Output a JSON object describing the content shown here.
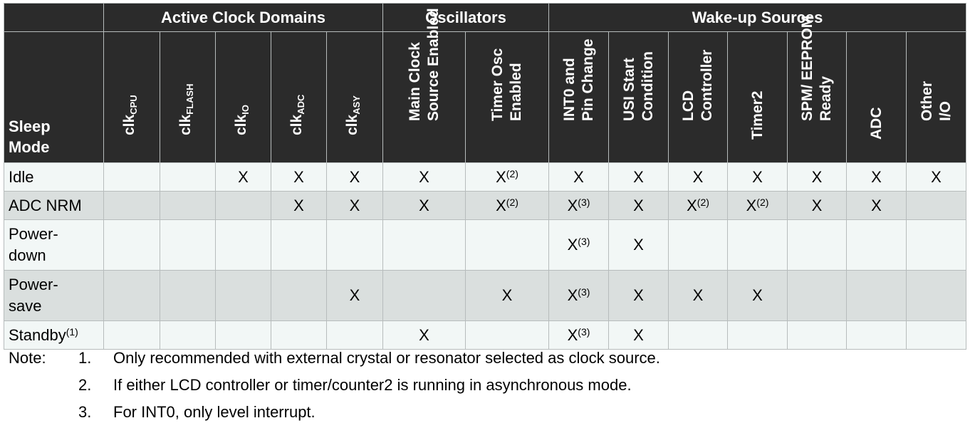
{
  "groups": {
    "active_clock_domains": "Active Clock Domains",
    "oscillators": "Oscillators",
    "wakeup_sources": "Wake-up Sources"
  },
  "mode_header": [
    "Sleep",
    "Mode"
  ],
  "columns": {
    "clk_cpu": {
      "base": "clk",
      "sub": "CPU"
    },
    "clk_flash": {
      "base": "clk",
      "sub": "FLASH"
    },
    "clk_io": {
      "base": "clk",
      "sub": "IO"
    },
    "clk_adc": {
      "base": "clk",
      "sub": "ADC"
    },
    "clk_asy": {
      "base": "clk",
      "sub": "ASY"
    },
    "main_clock": [
      "Main Clock",
      "Source Enabled"
    ],
    "timer_osc": [
      "Timer Osc",
      "Enabled"
    ],
    "int0": [
      "INT0 and",
      "Pin Change"
    ],
    "usi": [
      "USI Start",
      "Condition"
    ],
    "lcd": [
      "LCD",
      "Controller"
    ],
    "timer2": [
      "Timer2"
    ],
    "spm": [
      "SPM/ EEPROM",
      "Ready"
    ],
    "adc": [
      "ADC"
    ],
    "other_io": [
      "Other",
      "I/O"
    ]
  },
  "rows": [
    {
      "mode": "Idle",
      "mode_sup": "",
      "cells": [
        {
          "v": "",
          "s": ""
        },
        {
          "v": "",
          "s": ""
        },
        {
          "v": "X",
          "s": ""
        },
        {
          "v": "X",
          "s": ""
        },
        {
          "v": "X",
          "s": ""
        },
        {
          "v": "X",
          "s": ""
        },
        {
          "v": "X",
          "s": "(2)"
        },
        {
          "v": "X",
          "s": ""
        },
        {
          "v": "X",
          "s": ""
        },
        {
          "v": "X",
          "s": ""
        },
        {
          "v": "X",
          "s": ""
        },
        {
          "v": "X",
          "s": ""
        },
        {
          "v": "X",
          "s": ""
        },
        {
          "v": "X",
          "s": ""
        }
      ]
    },
    {
      "mode": "ADC NRM",
      "mode_sup": "",
      "cells": [
        {
          "v": "",
          "s": ""
        },
        {
          "v": "",
          "s": ""
        },
        {
          "v": "",
          "s": ""
        },
        {
          "v": "X",
          "s": ""
        },
        {
          "v": "X",
          "s": ""
        },
        {
          "v": "X",
          "s": ""
        },
        {
          "v": "X",
          "s": "(2)"
        },
        {
          "v": "X",
          "s": "(3)"
        },
        {
          "v": "X",
          "s": ""
        },
        {
          "v": "X",
          "s": "(2)"
        },
        {
          "v": "X",
          "s": "(2)"
        },
        {
          "v": "X",
          "s": ""
        },
        {
          "v": "X",
          "s": ""
        },
        {
          "v": "",
          "s": ""
        }
      ]
    },
    {
      "mode": "Power-\ndown",
      "mode_sup": "",
      "cells": [
        {
          "v": "",
          "s": ""
        },
        {
          "v": "",
          "s": ""
        },
        {
          "v": "",
          "s": ""
        },
        {
          "v": "",
          "s": ""
        },
        {
          "v": "",
          "s": ""
        },
        {
          "v": "",
          "s": ""
        },
        {
          "v": "",
          "s": ""
        },
        {
          "v": "X",
          "s": "(3)"
        },
        {
          "v": "X",
          "s": ""
        },
        {
          "v": "",
          "s": ""
        },
        {
          "v": "",
          "s": ""
        },
        {
          "v": "",
          "s": ""
        },
        {
          "v": "",
          "s": ""
        },
        {
          "v": "",
          "s": ""
        }
      ]
    },
    {
      "mode": "Power-\nsave",
      "mode_sup": "",
      "cells": [
        {
          "v": "",
          "s": ""
        },
        {
          "v": "",
          "s": ""
        },
        {
          "v": "",
          "s": ""
        },
        {
          "v": "",
          "s": ""
        },
        {
          "v": "X",
          "s": ""
        },
        {
          "v": "",
          "s": ""
        },
        {
          "v": "X",
          "s": ""
        },
        {
          "v": "X",
          "s": "(3)"
        },
        {
          "v": "X",
          "s": ""
        },
        {
          "v": "X",
          "s": ""
        },
        {
          "v": "X",
          "s": ""
        },
        {
          "v": "",
          "s": ""
        },
        {
          "v": "",
          "s": ""
        },
        {
          "v": "",
          "s": ""
        }
      ]
    },
    {
      "mode": "Standby",
      "mode_sup": "(1)",
      "cells": [
        {
          "v": "",
          "s": ""
        },
        {
          "v": "",
          "s": ""
        },
        {
          "v": "",
          "s": ""
        },
        {
          "v": "",
          "s": ""
        },
        {
          "v": "",
          "s": ""
        },
        {
          "v": "X",
          "s": ""
        },
        {
          "v": "",
          "s": ""
        },
        {
          "v": "X",
          "s": "(3)"
        },
        {
          "v": "X",
          "s": ""
        },
        {
          "v": "",
          "s": ""
        },
        {
          "v": "",
          "s": ""
        },
        {
          "v": "",
          "s": ""
        },
        {
          "v": "",
          "s": ""
        },
        {
          "v": "",
          "s": ""
        }
      ]
    }
  ],
  "notes": {
    "label": "Note:",
    "items": [
      {
        "num": "1.",
        "text": "Only recommended with external crystal or resonator selected as clock source."
      },
      {
        "num": "2.",
        "text": "If either LCD controller or timer/counter2 is running in asynchronous mode."
      },
      {
        "num": "3.",
        "text": "For INT0, only level interrupt."
      }
    ]
  }
}
